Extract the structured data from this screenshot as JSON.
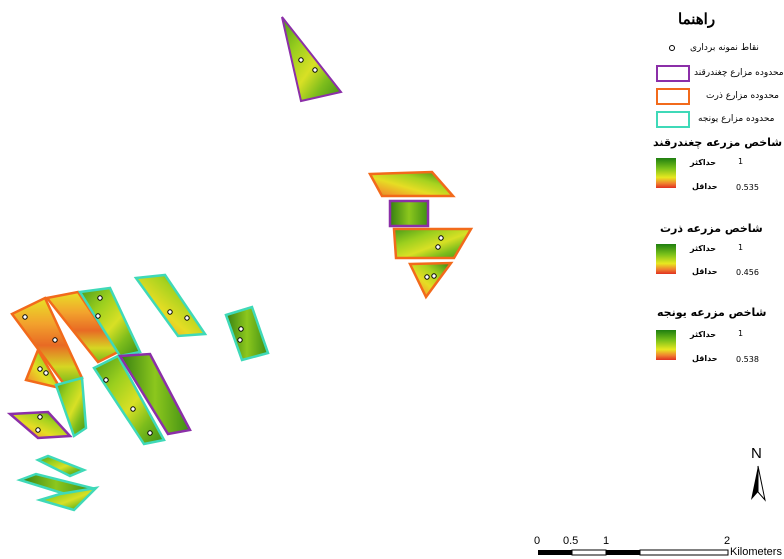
{
  "legend": {
    "title": "راهنما",
    "sample_points": "نقاط نمونه برداری",
    "beet_boundary": "محدوده مزارع چغندرقند",
    "corn_boundary": "محدوده مزارع ذرت",
    "alfalfa_boundary": "محدوده مزارع یونجه",
    "beet_index": {
      "title": "شاخص مزرعه چغندرقند",
      "max_label": "حداکثر",
      "min_label": "حداقل",
      "max": "1",
      "min": "0.535"
    },
    "corn_index": {
      "title": "شاخص مزرعه ذرت",
      "max_label": "حداکثر",
      "min_label": "حداقل",
      "max": "1",
      "min": "0.456"
    },
    "alfalfa_index": {
      "title": "شاخص مزرعه یونجه",
      "max_label": "حداکثر",
      "min_label": "حداقل",
      "max": "1",
      "min": "0.538"
    }
  },
  "colors": {
    "beet": "#8b2fa8",
    "corn": "#f26a1b",
    "alfalfa": "#3fd9b8",
    "ramp_high": "#1e7f10",
    "ramp_low": "#e03020"
  },
  "north_arrow": {
    "label": "N"
  },
  "scale_bar": {
    "ticks": [
      "0",
      "0.5",
      "1",
      "2"
    ],
    "unit": "Kilometers"
  }
}
